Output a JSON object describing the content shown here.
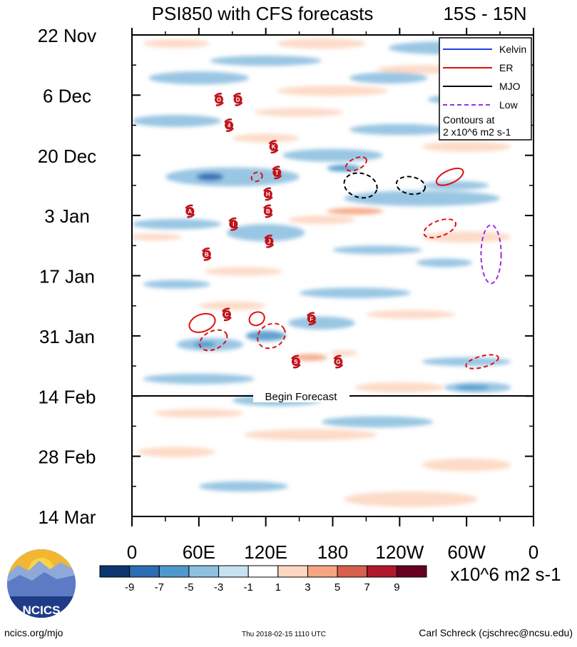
{
  "chart_data": {
    "type": "heatmap",
    "title": "PSI850 with CFS forecasts",
    "region": "15S - 15N",
    "x_ticks": [
      "0",
      "60E",
      "120E",
      "180",
      "120W",
      "60W",
      "0"
    ],
    "y_ticks": [
      "22 Nov",
      "6 Dec",
      "20 Dec",
      "3 Jan",
      "17 Jan",
      "31 Jan",
      "14 Feb",
      "28 Feb",
      "14 Mar"
    ],
    "forecast_label": "Begin Forecast",
    "forecast_start": "14 Feb",
    "legend": [
      {
        "name": "Kelvin",
        "color": "#1f3fe0",
        "style": "solid"
      },
      {
        "name": "ER",
        "color": "#e01010",
        "style": "solid"
      },
      {
        "name": "MJO",
        "color": "#000000",
        "style": "solid"
      },
      {
        "name": "Low",
        "color": "#9a30e0",
        "style": "dashed"
      }
    ],
    "contour_note_1": "Contours at",
    "contour_note_2": "2 x10^6 m2 s-1",
    "colorbar": {
      "tick_labels": [
        "-9",
        "-7",
        "-5",
        "-3",
        "-1",
        "1",
        "3",
        "5",
        "7",
        "9"
      ],
      "colors": [
        "#0d3570",
        "#2d6db3",
        "#4f98cb",
        "#8ec0e0",
        "#c6e1f1",
        "#ffffff",
        "#fdd7c2",
        "#f4a582",
        "#d6604d",
        "#b2182b",
        "#67001f"
      ],
      "units": "x10^6 m2 s-1"
    },
    "storms": [
      {
        "label": "O",
        "lon": 78,
        "day": 15
      },
      {
        "label": "D",
        "lon": 95,
        "day": 15
      },
      {
        "label": "4",
        "lon": 87,
        "day": 21
      },
      {
        "label": "K",
        "lon": 127,
        "day": 26
      },
      {
        "label": "T",
        "lon": 130,
        "day": 32
      },
      {
        "label": "H",
        "lon": 122,
        "day": 37
      },
      {
        "label": "B",
        "lon": 122,
        "day": 41
      },
      {
        "label": "A",
        "lon": 52,
        "day": 41
      },
      {
        "label": "I",
        "lon": 91,
        "day": 44
      },
      {
        "label": "J",
        "lon": 123,
        "day": 48
      },
      {
        "label": "B",
        "lon": 67,
        "day": 51
      },
      {
        "label": "C",
        "lon": 85,
        "day": 65
      },
      {
        "label": "F",
        "lon": 161,
        "day": 66
      },
      {
        "label": "S",
        "lon": 147,
        "day": 76
      },
      {
        "label": "G",
        "lon": 185,
        "day": 76
      }
    ],
    "contours": [
      {
        "wave": "ER",
        "dashed": true,
        "lon": 112,
        "day": 33,
        "lon_r": 5,
        "day_r": 1,
        "rot": -25
      },
      {
        "wave": "ER",
        "dashed": true,
        "lon": 201,
        "day": 30,
        "lon_r": 10,
        "day_r": 1.3,
        "rot": -25
      },
      {
        "wave": "ER",
        "dashed": false,
        "lon": 285,
        "day": 33,
        "lon_r": 13,
        "day_r": 1.5,
        "rot": -25
      },
      {
        "wave": "ER",
        "dashed": true,
        "lon": 276,
        "day": 45,
        "lon_r": 15,
        "day_r": 1.8,
        "rot": -20
      },
      {
        "wave": "ER",
        "dashed": false,
        "lon": 63,
        "day": 67,
        "lon_r": 12,
        "day_r": 2,
        "rot": -20
      },
      {
        "wave": "ER",
        "dashed": false,
        "lon": 112,
        "day": 66,
        "lon_r": 7,
        "day_r": 1.5,
        "rot": -25
      },
      {
        "wave": "ER",
        "dashed": true,
        "lon": 73,
        "day": 71,
        "lon_r": 13,
        "day_r": 2.1,
        "rot": -25
      },
      {
        "wave": "ER",
        "dashed": true,
        "lon": 125,
        "day": 70,
        "lon_r": 13,
        "day_r": 2.7,
        "rot": -30
      },
      {
        "wave": "ER",
        "dashed": true,
        "lon": 314,
        "day": 76,
        "lon_r": 15,
        "day_r": 1.3,
        "rot": -15
      },
      {
        "wave": "MJO",
        "dashed": true,
        "lon": 205,
        "day": 35,
        "lon_r": 15,
        "day_r": 2.8,
        "rot": 15
      },
      {
        "wave": "MJO",
        "dashed": true,
        "lon": 250,
        "day": 35,
        "lon_r": 13,
        "day_r": 2,
        "rot": 10
      },
      {
        "wave": "Low",
        "dashed": true,
        "lon": 322,
        "day": 51,
        "lon_r": 9,
        "day_r": 6.8,
        "rot": 0
      }
    ],
    "anomalies": [
      {
        "lon": 40,
        "day": 2,
        "lon_r": 30,
        "day_r": 1,
        "value": 3
      },
      {
        "lon": 170,
        "day": 2,
        "lon_r": 40,
        "day_r": 1.2,
        "value": 3
      },
      {
        "lon": 280,
        "day": 3,
        "lon_r": 50,
        "day_r": 1.5,
        "value": -3
      },
      {
        "lon": 120,
        "day": 6,
        "lon_r": 50,
        "day_r": 1.2,
        "value": -3
      },
      {
        "lon": 260,
        "day": 8,
        "lon_r": 40,
        "day_r": 1,
        "value": 3
      },
      {
        "lon": 230,
        "day": 10,
        "lon_r": 35,
        "day_r": 1.3,
        "value": -3
      },
      {
        "lon": 60,
        "day": 10,
        "lon_r": 45,
        "day_r": 1.5,
        "value": -3
      },
      {
        "lon": 180,
        "day": 13,
        "lon_r": 50,
        "day_r": 1.2,
        "value": 3
      },
      {
        "lon": 300,
        "day": 15,
        "lon_r": 35,
        "day_r": 1.2,
        "value": -3
      },
      {
        "lon": 150,
        "day": 18,
        "lon_r": 40,
        "day_r": 1,
        "value": 3
      },
      {
        "lon": 40,
        "day": 20,
        "lon_r": 40,
        "day_r": 1.4,
        "value": -3
      },
      {
        "lon": 240,
        "day": 22,
        "lon_r": 45,
        "day_r": 1.3,
        "value": -3
      },
      {
        "lon": 120,
        "day": 24,
        "lon_r": 30,
        "day_r": 1,
        "value": 3
      },
      {
        "lon": 300,
        "day": 26,
        "lon_r": 40,
        "day_r": 1.2,
        "value": 3
      },
      {
        "lon": 180,
        "day": 28,
        "lon_r": 45,
        "day_r": 1.5,
        "value": -3
      },
      {
        "lon": 90,
        "day": 33,
        "lon_r": 60,
        "day_r": 2.2,
        "value": -3
      },
      {
        "lon": 70,
        "day": 33,
        "lon_r": 12,
        "day_r": 0.9,
        "value": -7
      },
      {
        "lon": 190,
        "day": 31,
        "lon_r": 15,
        "day_r": 0.8,
        "value": -5
      },
      {
        "lon": 260,
        "day": 38,
        "lon_r": 70,
        "day_r": 1.8,
        "value": -3
      },
      {
        "lon": 290,
        "day": 35,
        "lon_r": 30,
        "day_r": 1,
        "value": -3
      },
      {
        "lon": 170,
        "day": 43,
        "lon_r": 30,
        "day_r": 1,
        "value": 3
      },
      {
        "lon": 200,
        "day": 41,
        "lon_r": 25,
        "day_r": 0.8,
        "value": 5
      },
      {
        "lon": 40,
        "day": 44,
        "lon_r": 40,
        "day_r": 1.2,
        "value": -3
      },
      {
        "lon": 120,
        "day": 46,
        "lon_r": 35,
        "day_r": 2,
        "value": -3
      },
      {
        "lon": 20,
        "day": 47,
        "lon_r": 25,
        "day_r": 0.8,
        "value": 3
      },
      {
        "lon": 300,
        "day": 47,
        "lon_r": 40,
        "day_r": 1.3,
        "value": 3
      },
      {
        "lon": 220,
        "day": 50,
        "lon_r": 40,
        "day_r": 1,
        "value": -3
      },
      {
        "lon": 280,
        "day": 53,
        "lon_r": 25,
        "day_r": 1,
        "value": -3
      },
      {
        "lon": 100,
        "day": 55,
        "lon_r": 35,
        "day_r": 1,
        "value": 3
      },
      {
        "lon": 40,
        "day": 58,
        "lon_r": 30,
        "day_r": 1,
        "value": -3
      },
      {
        "lon": 200,
        "day": 60,
        "lon_r": 50,
        "day_r": 1.2,
        "value": -3
      },
      {
        "lon": 90,
        "day": 63,
        "lon_r": 30,
        "day_r": 1,
        "value": 3
      },
      {
        "lon": 170,
        "day": 67,
        "lon_r": 30,
        "day_r": 1.5,
        "value": -3
      },
      {
        "lon": 250,
        "day": 65,
        "lon_r": 40,
        "day_r": 1,
        "value": 3
      },
      {
        "lon": 70,
        "day": 72,
        "lon_r": 30,
        "day_r": 1.5,
        "value": -3
      },
      {
        "lon": 65,
        "day": 72,
        "lon_r": 10,
        "day_r": 0.7,
        "value": -5
      },
      {
        "lon": 120,
        "day": 70,
        "lon_r": 18,
        "day_r": 1.2,
        "value": -5
      },
      {
        "lon": 160,
        "day": 75,
        "lon_r": 15,
        "day_r": 0.8,
        "value": 5
      },
      {
        "lon": 190,
        "day": 74,
        "lon_r": 12,
        "day_r": 0.7,
        "value": 3
      },
      {
        "lon": 300,
        "day": 76,
        "lon_r": 40,
        "day_r": 1,
        "value": -3
      },
      {
        "lon": 60,
        "day": 80,
        "lon_r": 50,
        "day_r": 1.2,
        "value": -3
      },
      {
        "lon": 240,
        "day": 82,
        "lon_r": 40,
        "day_r": 1.2,
        "value": 3
      },
      {
        "lon": 310,
        "day": 82,
        "lon_r": 30,
        "day_r": 1.2,
        "value": -3
      },
      {
        "lon": 305,
        "day": 82,
        "lon_r": 15,
        "day_r": 0.6,
        "value": -5
      },
      {
        "lon": 130,
        "day": 85,
        "lon_r": 40,
        "day_r": 1.3,
        "value": -3
      },
      {
        "lon": 60,
        "day": 88,
        "lon_r": 40,
        "day_r": 1,
        "value": 3
      },
      {
        "lon": 220,
        "day": 90,
        "lon_r": 50,
        "day_r": 1.3,
        "value": -3
      },
      {
        "lon": 160,
        "day": 93,
        "lon_r": 60,
        "day_r": 1.3,
        "value": 3
      },
      {
        "lon": 40,
        "day": 97,
        "lon_r": 35,
        "day_r": 1.2,
        "value": 3
      },
      {
        "lon": 300,
        "day": 100,
        "lon_r": 40,
        "day_r": 1.5,
        "value": 3
      },
      {
        "lon": 250,
        "day": 108,
        "lon_r": 60,
        "day_r": 1.8,
        "value": 3
      },
      {
        "lon": 100,
        "day": 105,
        "lon_r": 40,
        "day_r": 1.2,
        "value": -3
      }
    ]
  },
  "branding": {
    "logo_text": "NCICS",
    "site": "ncics.org/mjo",
    "timestamp": "Thu 2018-02-15 1110 UTC",
    "credit": "Carl Schreck (cjschrec@ncsu.edu)"
  }
}
